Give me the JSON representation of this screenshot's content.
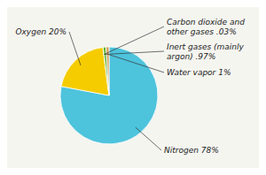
{
  "chart_data": {
    "type": "pie",
    "categories": [
      "Nitrogen 78%",
      "Oxygen 20%",
      "Carbon dioxide and\nother gases .03%",
      "Inert gases (mainly\nargon) .97%",
      "Water vapor 1%"
    ],
    "values": [
      78,
      20,
      0.03,
      0.97,
      1
    ],
    "colors": [
      "#4DC3DC",
      "#F5CC00",
      "#E06010",
      "#5CB535",
      "#D4A060"
    ]
  }
}
